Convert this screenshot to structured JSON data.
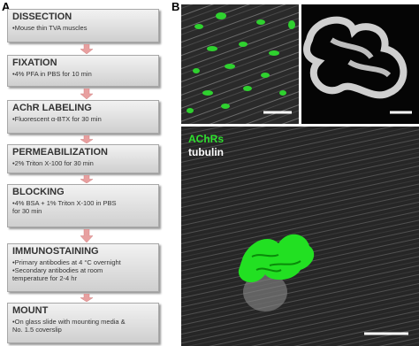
{
  "panels": {
    "a": {
      "label": "A",
      "steps": [
        {
          "title": "DISSECTION",
          "lines": [
            "•Mouse thin TVA muscles"
          ]
        },
        {
          "title": "FIXATION",
          "lines": [
            "•4% PFA in PBS for 10 min"
          ]
        },
        {
          "title": "AChR LABELING",
          "lines": [
            "•Fluorescent α-BTX for 30 min"
          ]
        },
        {
          "title": "PERMEABILIZATION",
          "lines": [
            "•2% Triton X-100 for 30 min"
          ]
        },
        {
          "title": "BLOCKING",
          "lines": [
            "•4% BSA + 1% Triton X-100 in PBS",
            "for 30 min"
          ]
        },
        {
          "title": "IMMUNOSTAINING",
          "lines": [
            "•Primary antibodies at 4 °C overnight",
            "•Secondary antibodies at room",
            "temperature for 2-4 hr"
          ]
        },
        {
          "title": "MOUNT",
          "lines": [
            "•On glass slide with mounting media &",
            "No. 1.5 coverslip"
          ]
        }
      ]
    },
    "b": {
      "label": "B",
      "legend": [
        "AChRs",
        "tubulin"
      ]
    }
  }
}
